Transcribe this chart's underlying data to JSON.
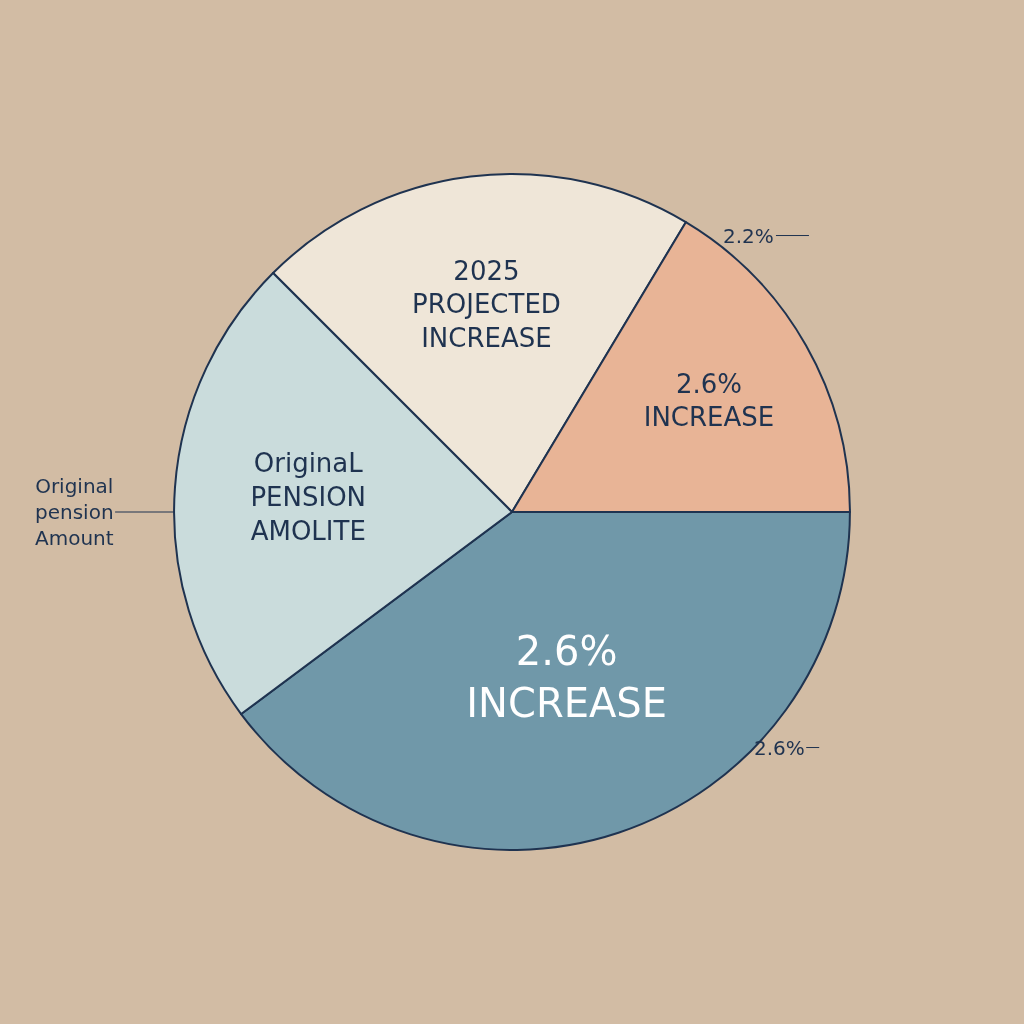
{
  "chart_data": {
    "type": "pie",
    "categories": [
      "2025\nPROJECTED\nINCREASE",
      "2.6%\nINCREASE",
      "2.6%\nINCREASE",
      "OriginaL\nPENSION\nAMOLITE"
    ],
    "values": [
      21.1,
      16.4,
      39.8,
      22.7
    ],
    "colors": [
      "#efe6d8",
      "#e8b496",
      "#7098a9",
      "#cadcdc"
    ],
    "annotations": [
      "2.2%",
      "Original\npension\nAmount",
      "2.6%"
    ],
    "legend": false
  }
}
